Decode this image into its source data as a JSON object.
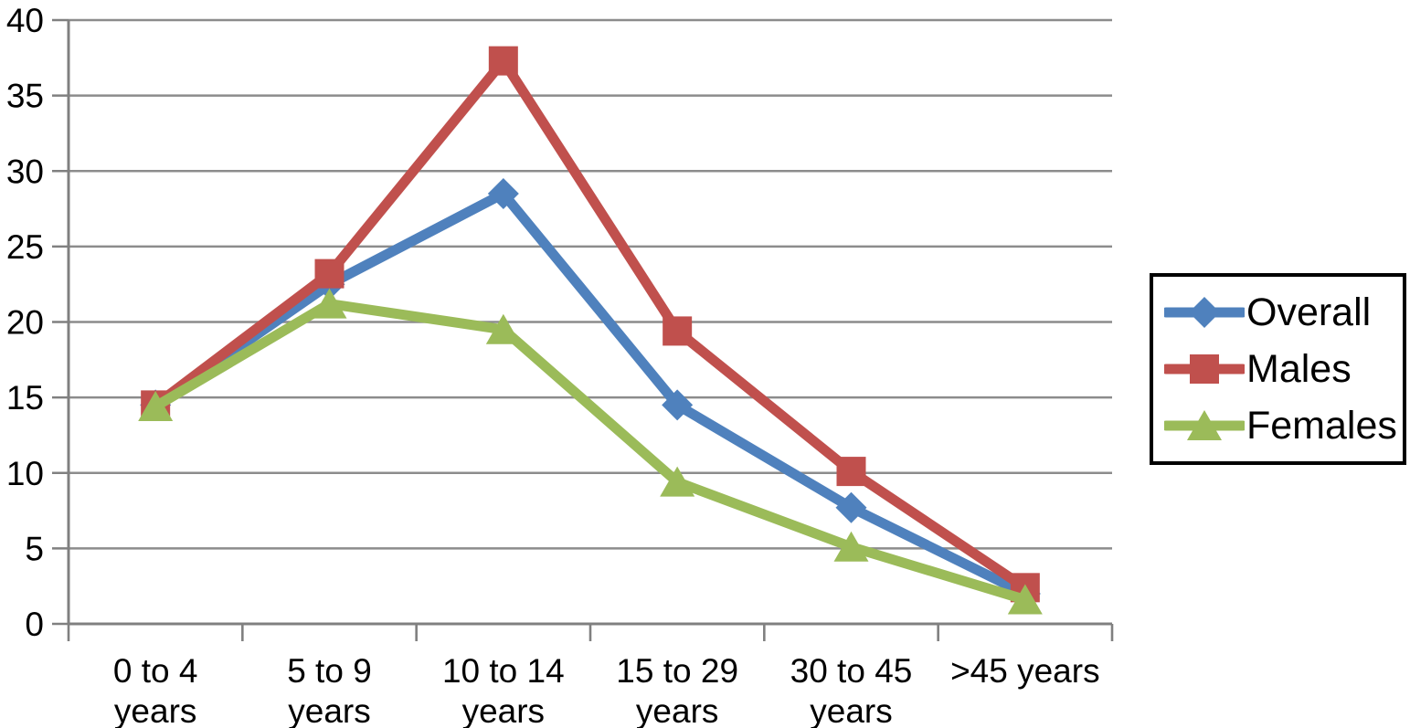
{
  "chart_data": {
    "type": "line",
    "title": "",
    "xlabel": "",
    "ylabel": "",
    "categories": [
      "0 to 4 years",
      "5 to 9 years",
      "10 to 14 years",
      "15 to 29 years",
      "30 to 45 years",
      ">45 years"
    ],
    "tick_label_lines": [
      [
        "0 to 4",
        "years"
      ],
      [
        "5 to 9",
        "years"
      ],
      [
        "10 to 14",
        "years"
      ],
      [
        "15 to 29",
        "years"
      ],
      [
        "30 to 45",
        "years"
      ],
      [
        ">45 years"
      ]
    ],
    "y_ticks": [
      0,
      5,
      10,
      15,
      20,
      25,
      30,
      35,
      40
    ],
    "ylim": [
      0,
      40
    ],
    "grid": true,
    "legend_position": "right",
    "series": [
      {
        "name": "Overall",
        "color": "#4F81BD",
        "marker": "diamond",
        "values": [
          14.5,
          22.5,
          28.5,
          14.5,
          7.7,
          2.0
        ]
      },
      {
        "name": "Males",
        "color": "#C0504D",
        "marker": "square",
        "values": [
          14.5,
          23.2,
          37.3,
          19.4,
          10.1,
          2.4
        ]
      },
      {
        "name": "Females",
        "color": "#9BBB59",
        "marker": "triangle",
        "values": [
          14.4,
          21.2,
          19.5,
          9.4,
          5.1,
          1.6
        ]
      }
    ],
    "axis_color": "#808080",
    "grid_color": "#8C8C8C",
    "text_color": "#000000",
    "background_color": "#FFFFFF"
  }
}
